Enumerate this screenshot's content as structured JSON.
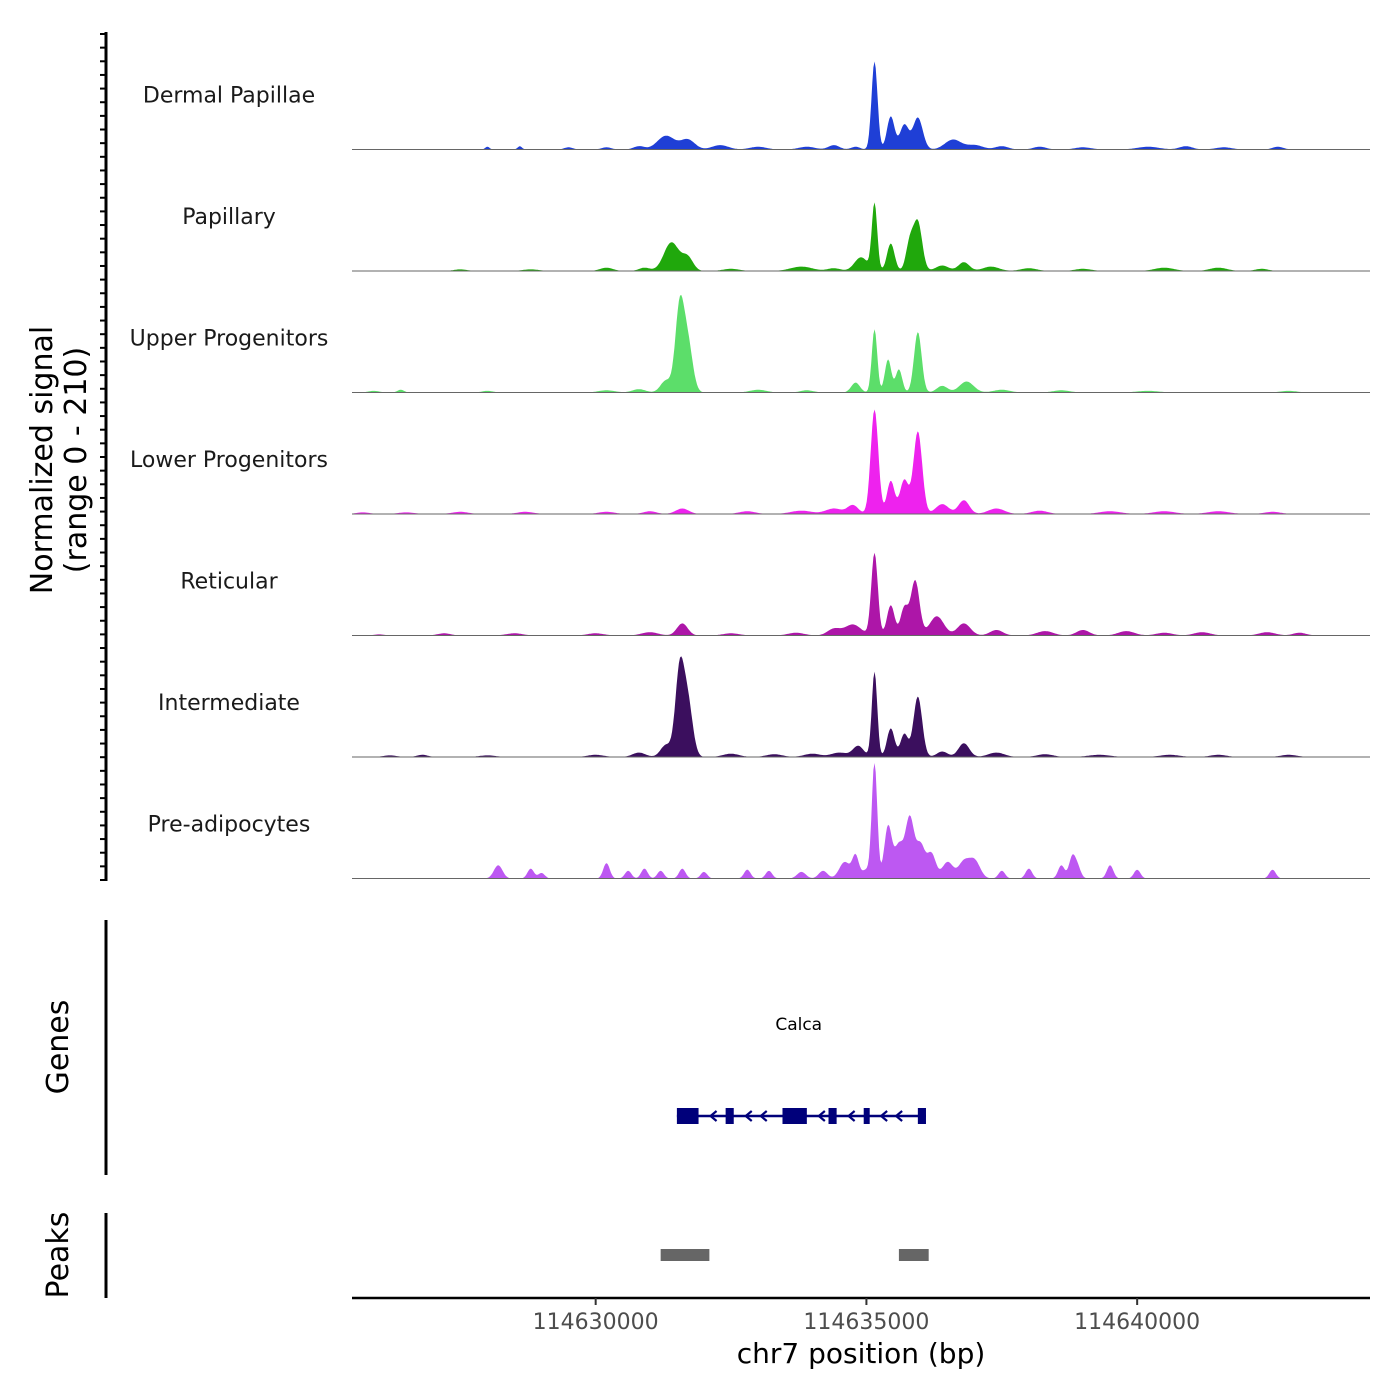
{
  "chart_data": {
    "type": "area",
    "title": "",
    "ylabel_line1": "Normalized signal",
    "ylabel_line2": "(range 0 - 210)",
    "ylim": [
      0,
      210
    ],
    "xlabel": "chr7 position (bp)",
    "xlim": [
      114625500,
      114644300
    ],
    "xticks": [
      114630000,
      114635000,
      114640000
    ],
    "xtick_labels": [
      "114630000",
      "114635000",
      "114640000"
    ],
    "series": [
      {
        "name": "Dermal Papillae",
        "color": "#1f3fd6",
        "peaks": [
          [
            114628000,
            5,
            40
          ],
          [
            114628600,
            6,
            40
          ],
          [
            114629500,
            4,
            80
          ],
          [
            114630200,
            4,
            90
          ],
          [
            114630800,
            6,
            100
          ],
          [
            114631300,
            25,
            160
          ],
          [
            114631700,
            18,
            130
          ],
          [
            114632300,
            8,
            150
          ],
          [
            114633000,
            5,
            150
          ],
          [
            114633900,
            5,
            150
          ],
          [
            114634400,
            8,
            100
          ],
          [
            114634800,
            5,
            80
          ],
          [
            114635150,
            160,
            55
          ],
          [
            114635450,
            60,
            70
          ],
          [
            114635700,
            45,
            80
          ],
          [
            114635950,
            58,
            90
          ],
          [
            114636600,
            18,
            150
          ],
          [
            114637000,
            8,
            150
          ],
          [
            114637500,
            6,
            120
          ],
          [
            114638200,
            5,
            120
          ],
          [
            114639000,
            4,
            150
          ],
          [
            114640200,
            5,
            200
          ],
          [
            114640900,
            6,
            120
          ],
          [
            114641600,
            4,
            150
          ],
          [
            114642600,
            5,
            100
          ]
        ]
      },
      {
        "name": "Papillary",
        "color": "#20a80c",
        "peaks": [
          [
            114627500,
            3,
            120
          ],
          [
            114628800,
            3,
            150
          ],
          [
            114630200,
            6,
            120
          ],
          [
            114630900,
            6,
            100
          ],
          [
            114631400,
            52,
            140
          ],
          [
            114631700,
            24,
            100
          ],
          [
            114632500,
            4,
            150
          ],
          [
            114633800,
            8,
            200
          ],
          [
            114634400,
            5,
            120
          ],
          [
            114634900,
            25,
            120
          ],
          [
            114635150,
            122,
            50
          ],
          [
            114635450,
            50,
            70
          ],
          [
            114635800,
            50,
            70
          ],
          [
            114635950,
            88,
            80
          ],
          [
            114636400,
            10,
            120
          ],
          [
            114636800,
            16,
            100
          ],
          [
            114637300,
            8,
            150
          ],
          [
            114638000,
            5,
            150
          ],
          [
            114639000,
            4,
            150
          ],
          [
            114640500,
            6,
            180
          ],
          [
            114641500,
            6,
            160
          ],
          [
            114642300,
            4,
            120
          ]
        ]
      },
      {
        "name": "Upper Progenitors",
        "color": "#5cde6a",
        "peaks": [
          [
            114625900,
            3,
            100
          ],
          [
            114626400,
            5,
            60
          ],
          [
            114628000,
            3,
            100
          ],
          [
            114630200,
            4,
            150
          ],
          [
            114630800,
            6,
            120
          ],
          [
            114631300,
            22,
            100
          ],
          [
            114631550,
            150,
            80
          ],
          [
            114631700,
            90,
            90
          ],
          [
            114633000,
            5,
            150
          ],
          [
            114633900,
            4,
            120
          ],
          [
            114634800,
            18,
            80
          ],
          [
            114635150,
            115,
            50
          ],
          [
            114635400,
            60,
            60
          ],
          [
            114635600,
            42,
            60
          ],
          [
            114635950,
            110,
            70
          ],
          [
            114636400,
            12,
            100
          ],
          [
            114636850,
            20,
            130
          ],
          [
            114637500,
            5,
            150
          ],
          [
            114638600,
            4,
            150
          ],
          [
            114640200,
            3,
            200
          ],
          [
            114642800,
            3,
            150
          ]
        ]
      },
      {
        "name": "Lower Progenitors",
        "color": "#ee22ee",
        "peaks": [
          [
            114625700,
            3,
            120
          ],
          [
            114626500,
            3,
            150
          ],
          [
            114627500,
            4,
            150
          ],
          [
            114628700,
            4,
            150
          ],
          [
            114630200,
            4,
            150
          ],
          [
            114631000,
            5,
            120
          ],
          [
            114631600,
            10,
            120
          ],
          [
            114632800,
            5,
            150
          ],
          [
            114633800,
            6,
            200
          ],
          [
            114634400,
            10,
            150
          ],
          [
            114634750,
            16,
            100
          ],
          [
            114635150,
            190,
            70
          ],
          [
            114635450,
            60,
            70
          ],
          [
            114635700,
            62,
            80
          ],
          [
            114635950,
            150,
            80
          ],
          [
            114636400,
            18,
            120
          ],
          [
            114636800,
            25,
            100
          ],
          [
            114637400,
            10,
            150
          ],
          [
            114638200,
            6,
            150
          ],
          [
            114639500,
            5,
            200
          ],
          [
            114640500,
            5,
            200
          ],
          [
            114641500,
            5,
            200
          ],
          [
            114642500,
            4,
            150
          ]
        ]
      },
      {
        "name": "Reticular",
        "color": "#ad16a8",
        "peaks": [
          [
            114626000,
            2,
            100
          ],
          [
            114627200,
            4,
            120
          ],
          [
            114628500,
            4,
            150
          ],
          [
            114630000,
            4,
            150
          ],
          [
            114631000,
            6,
            150
          ],
          [
            114631600,
            22,
            100
          ],
          [
            114632500,
            4,
            150
          ],
          [
            114633700,
            5,
            150
          ],
          [
            114634400,
            12,
            120
          ],
          [
            114634750,
            20,
            150
          ],
          [
            114635150,
            150,
            60
          ],
          [
            114635450,
            55,
            70
          ],
          [
            114635700,
            50,
            70
          ],
          [
            114635900,
            100,
            80
          ],
          [
            114636300,
            35,
            130
          ],
          [
            114636800,
            22,
            120
          ],
          [
            114637400,
            10,
            120
          ],
          [
            114638300,
            8,
            150
          ],
          [
            114639000,
            10,
            120
          ],
          [
            114639800,
            8,
            150
          ],
          [
            114640500,
            5,
            150
          ],
          [
            114641200,
            6,
            150
          ],
          [
            114642400,
            6,
            150
          ],
          [
            114643000,
            5,
            120
          ]
        ]
      },
      {
        "name": "Intermediate",
        "color": "#3b0f5e",
        "peaks": [
          [
            114626200,
            3,
            120
          ],
          [
            114626800,
            4,
            100
          ],
          [
            114628000,
            3,
            150
          ],
          [
            114630000,
            4,
            150
          ],
          [
            114630800,
            8,
            120
          ],
          [
            114631300,
            22,
            100
          ],
          [
            114631550,
            152,
            80
          ],
          [
            114631700,
            100,
            90
          ],
          [
            114632500,
            6,
            150
          ],
          [
            114633300,
            5,
            150
          ],
          [
            114634000,
            6,
            150
          ],
          [
            114634500,
            8,
            150
          ],
          [
            114634850,
            20,
            100
          ],
          [
            114635150,
            155,
            50
          ],
          [
            114635450,
            52,
            70
          ],
          [
            114635700,
            42,
            70
          ],
          [
            114635950,
            110,
            80
          ],
          [
            114636400,
            10,
            100
          ],
          [
            114636800,
            25,
            100
          ],
          [
            114637400,
            8,
            150
          ],
          [
            114638300,
            5,
            150
          ],
          [
            114639300,
            4,
            200
          ],
          [
            114640600,
            4,
            180
          ],
          [
            114641500,
            4,
            150
          ],
          [
            114642800,
            4,
            150
          ]
        ]
      },
      {
        "name": "Pre-adipocytes",
        "color": "#bd58f2",
        "peaks": [
          [
            114628200,
            24,
            80
          ],
          [
            114628800,
            18,
            60
          ],
          [
            114629000,
            10,
            60
          ],
          [
            114630200,
            28,
            60
          ],
          [
            114630600,
            14,
            60
          ],
          [
            114630900,
            18,
            60
          ],
          [
            114631200,
            14,
            60
          ],
          [
            114631600,
            18,
            60
          ],
          [
            114632000,
            12,
            60
          ],
          [
            114632800,
            16,
            60
          ],
          [
            114633200,
            14,
            60
          ],
          [
            114633800,
            12,
            80
          ],
          [
            114634200,
            14,
            80
          ],
          [
            114634600,
            30,
            100
          ],
          [
            114634800,
            40,
            60
          ],
          [
            114635000,
            16,
            80
          ],
          [
            114635150,
            210,
            50
          ],
          [
            114635400,
            95,
            70
          ],
          [
            114635600,
            60,
            80
          ],
          [
            114635800,
            110,
            80
          ],
          [
            114636000,
            60,
            80
          ],
          [
            114636200,
            45,
            80
          ],
          [
            114636500,
            30,
            100
          ],
          [
            114636800,
            30,
            100
          ],
          [
            114637000,
            32,
            100
          ],
          [
            114637500,
            14,
            60
          ],
          [
            114638000,
            18,
            60
          ],
          [
            114638600,
            24,
            60
          ],
          [
            114638800,
            38,
            60
          ],
          [
            114638900,
            20,
            60
          ],
          [
            114639500,
            24,
            60
          ],
          [
            114640000,
            16,
            60
          ],
          [
            114642500,
            16,
            60
          ]
        ]
      }
    ],
    "genes": [
      {
        "name": "Calca",
        "strand": "-",
        "start": 114631550,
        "end": 114635950,
        "exons": [
          [
            114631500,
            114631900
          ],
          [
            114632400,
            114632550
          ],
          [
            114633450,
            114633900
          ],
          [
            114634300,
            114634450
          ],
          [
            114634950,
            114635050
          ],
          [
            114635950,
            114636100
          ]
        ]
      }
    ],
    "peaks_regions": [
      [
        114631200,
        114632100
      ],
      [
        114635600,
        114636150
      ]
    ],
    "track_labels": {
      "genes": "Genes",
      "peaks": "Peaks"
    }
  }
}
